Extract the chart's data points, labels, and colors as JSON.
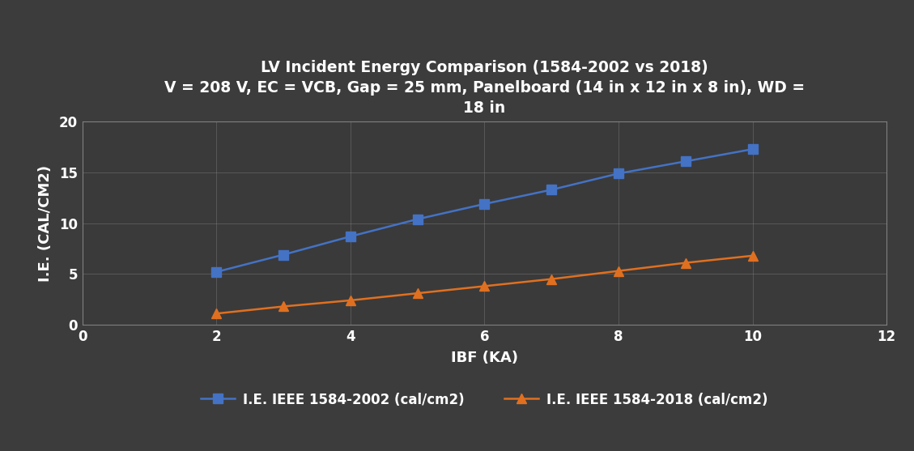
{
  "title_line1": "LV Incident Energy Comparison (1584-2002 vs 2018)",
  "title_line2": "V = 208 V, EC = VCB, Gap = 25 mm, Panelboard (14 in x 12 in x 8 in), WD =",
  "title_line3": "18 in",
  "xlabel": "IBF (KA)",
  "ylabel": "I.E. (CAL/CM2)",
  "xlim": [
    0,
    12
  ],
  "ylim": [
    0,
    20
  ],
  "xticks": [
    0,
    2,
    4,
    6,
    8,
    10,
    12
  ],
  "yticks": [
    0,
    5,
    10,
    15,
    20
  ],
  "series_2002": {
    "x": [
      2,
      3,
      4,
      5,
      6,
      7,
      8,
      9,
      10
    ],
    "y": [
      5.2,
      6.9,
      8.7,
      10.4,
      11.9,
      13.3,
      14.9,
      16.1,
      17.3
    ],
    "color": "#4472C4",
    "marker": "s",
    "label": "I.E. IEEE 1584-2002 (cal/cm2)"
  },
  "series_2018": {
    "x": [
      2,
      3,
      4,
      5,
      6,
      7,
      8,
      9,
      10
    ],
    "y": [
      1.1,
      1.8,
      2.4,
      3.1,
      3.8,
      4.5,
      5.3,
      6.1,
      6.8
    ],
    "color": "#E07020",
    "marker": "^",
    "label": "I.E. IEEE 1584-2018 (cal/cm2)"
  },
  "background_color": "#3C3C3C",
  "plot_bg_color": "#404040",
  "plot_bg_inner": "#3A3A3A",
  "grid_color": "#808080",
  "text_color": "#FFFFFF",
  "tick_color": "#CCCCCC",
  "title_fontsize": 13.5,
  "axis_label_fontsize": 13,
  "tick_fontsize": 12,
  "legend_fontsize": 12,
  "line_width": 1.8,
  "marker_size": 9
}
